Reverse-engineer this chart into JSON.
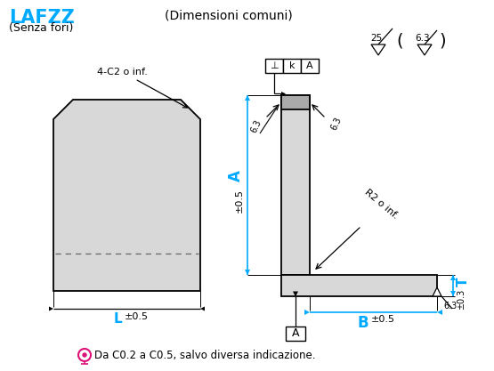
{
  "title": "LAFZZ",
  "subtitle": "(Senza fori)",
  "common_dim_text": "(Dimensioni comuni)",
  "bg_color": "#ffffff",
  "line_color": "#000000",
  "blue_color": "#00aaff",
  "gray_color": "#d8d8d8",
  "dark_gray": "#aaaaaa",
  "footer_text": "Da C0.2 a C0.5, salvo diversa indicazione.",
  "annot_4c2": "4-C2 o inf.",
  "annot_63_left": "6.3",
  "annot_63_right": "6.3",
  "annot_r2": "R2 o inf.",
  "annot_A_label": "A",
  "annot_pm05": "±0.5",
  "annot_L_label": "L",
  "annot_B_label": "B",
  "annot_T_label": "T",
  "annot_pm03": "±0.3",
  "annot_25": "25",
  "annot_63_top": "6.3",
  "box_label1": "⊥",
  "box_label2": "k",
  "box_label3": "A",
  "ref_label": "A",
  "fig_width": 5.55,
  "fig_height": 4.17,
  "dpi": 100
}
